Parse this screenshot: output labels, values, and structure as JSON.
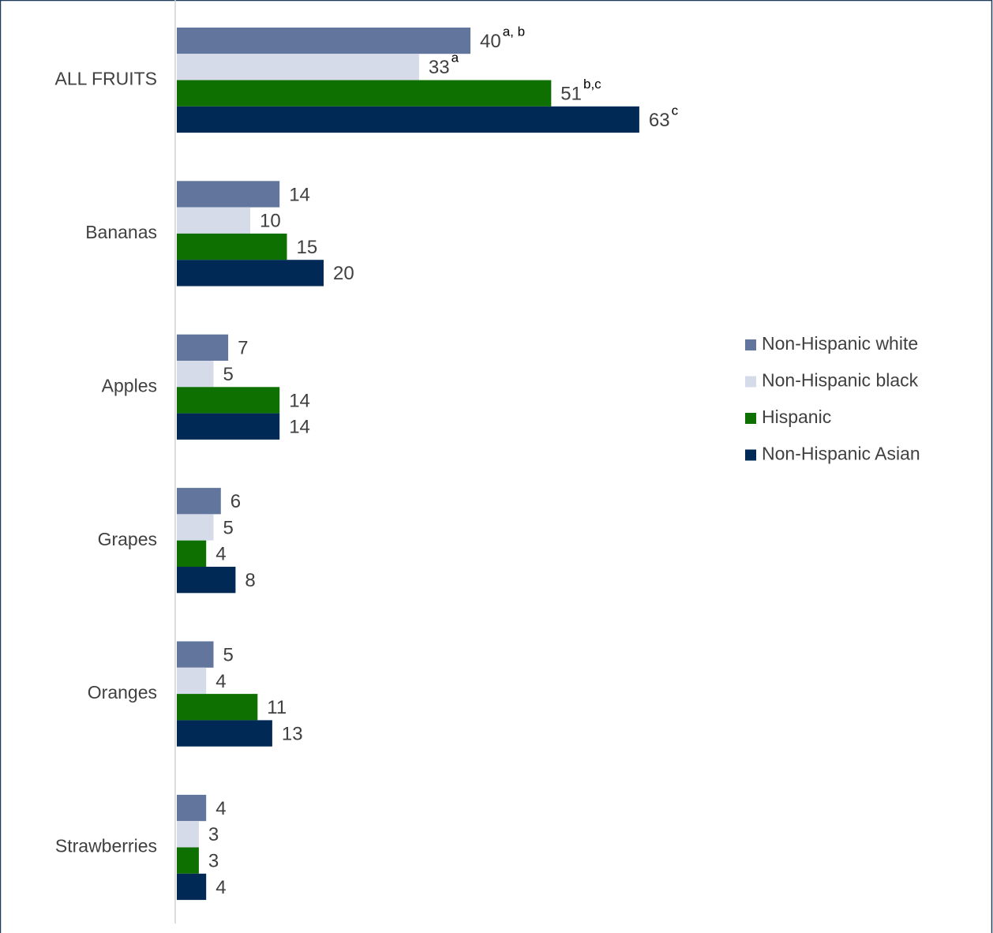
{
  "chart_data": {
    "type": "hbar",
    "categories": [
      "ALL FRUITS",
      "Bananas",
      "Apples",
      "Grapes",
      "Oranges",
      "Strawberries"
    ],
    "series": [
      {
        "name": "Non-Hispanic white",
        "color": "#62769d",
        "values": [
          40,
          14,
          7,
          6,
          5,
          4
        ],
        "annotations": [
          "a, b",
          null,
          null,
          null,
          null,
          null
        ]
      },
      {
        "name": "Non-Hispanic black",
        "color": "#d5dbe8",
        "values": [
          33,
          10,
          5,
          5,
          4,
          3
        ],
        "annotations": [
          "a",
          null,
          null,
          null,
          null,
          null
        ]
      },
      {
        "name": "Hispanic",
        "color": "#0d7000",
        "values": [
          51,
          15,
          14,
          4,
          11,
          3
        ],
        "annotations": [
          "b,c",
          null,
          null,
          null,
          null,
          null
        ]
      },
      {
        "name": "Non-Hispanic Asian",
        "color": "#002a55",
        "values": [
          63,
          20,
          14,
          8,
          13,
          4
        ],
        "annotations": [
          "c",
          null,
          null,
          null,
          null,
          null
        ]
      }
    ],
    "xlim": [
      0,
      110
    ],
    "legend": "right"
  }
}
